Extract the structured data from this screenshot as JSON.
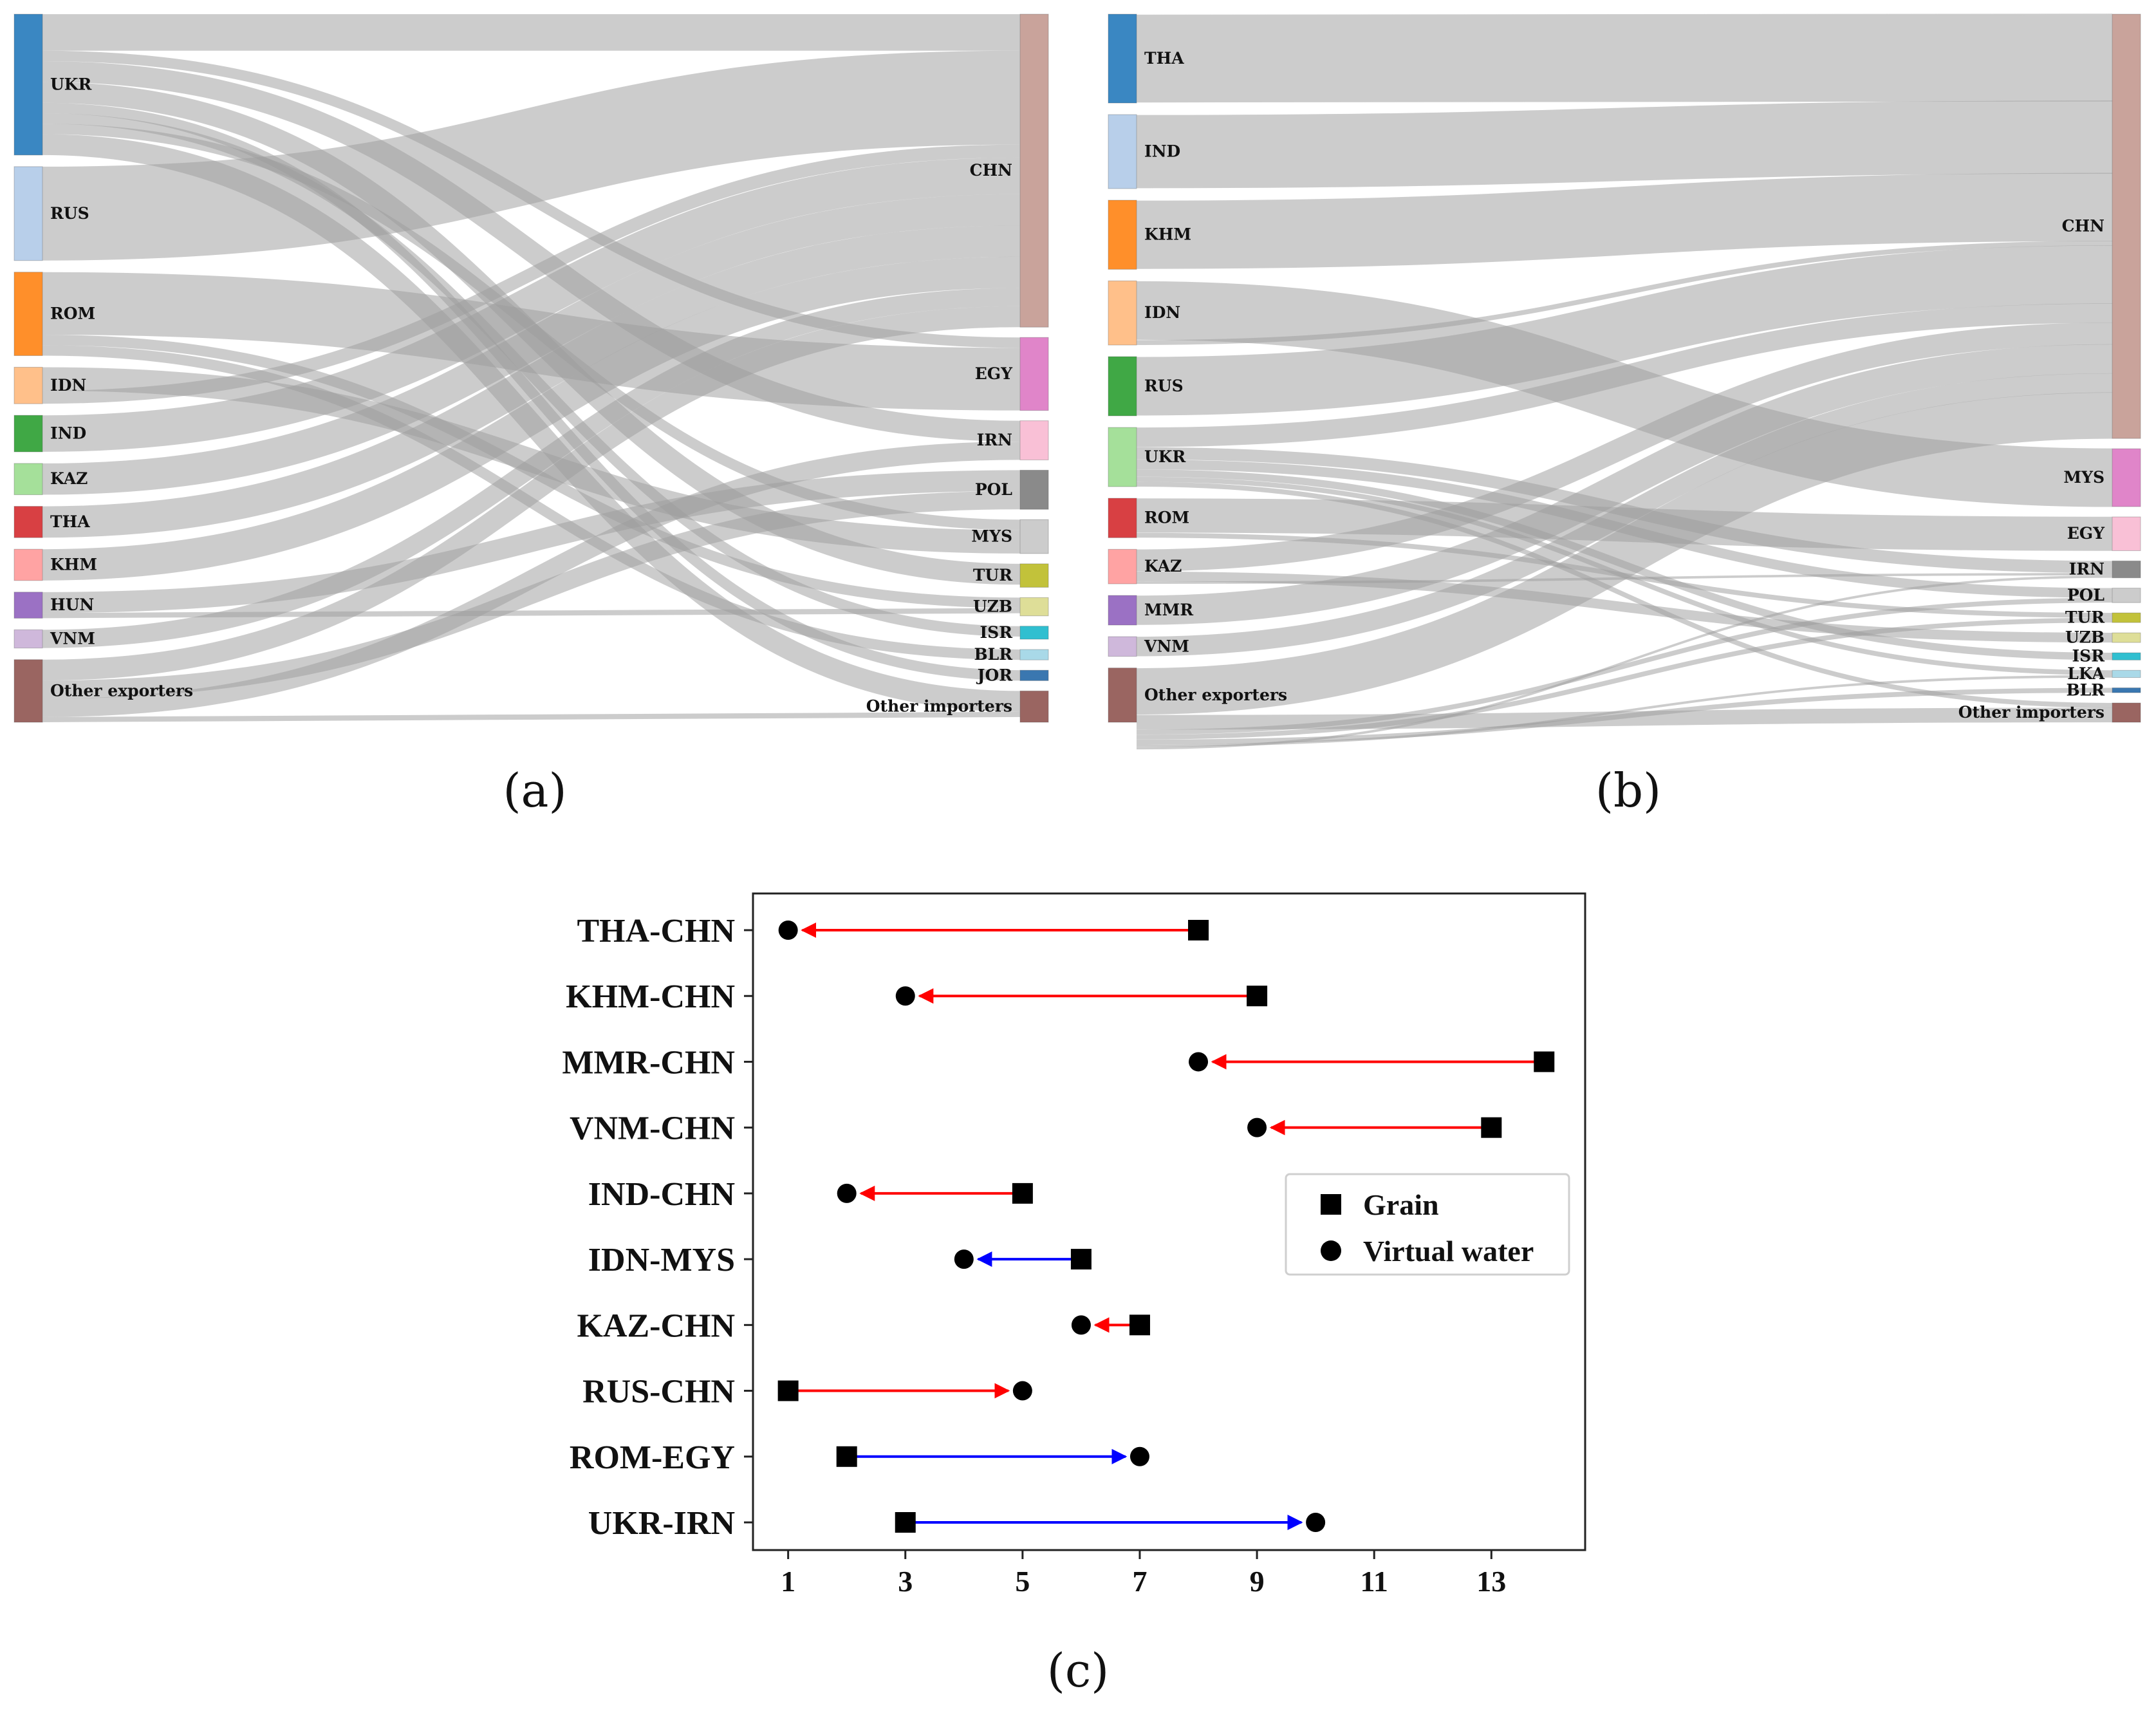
{
  "chart_data": [
    {
      "type": "sankey",
      "caption": "(a)",
      "exporters": [
        "UKR",
        "RUS",
        "ROM",
        "IDN",
        "IND",
        "KAZ",
        "THA",
        "KHM",
        "HUN",
        "VNM",
        "Other exporters"
      ],
      "importers": [
        "CHN",
        "EGY",
        "IRN",
        "POL",
        "MYS",
        "TUR",
        "UZB",
        "ISR",
        "BLR",
        "JOR",
        "Other importers"
      ],
      "exporter_colors": [
        "#3a87c2",
        "#b8cfea",
        "#ff8f2a",
        "#ffc08a",
        "#40a845",
        "#a5e09a",
        "#d84043",
        "#ffa3a3",
        "#9b71c4",
        "#cfb8db",
        "#9a6561"
      ],
      "importer_colors": [
        "#c9a39b",
        "#e085c9",
        "#f9c0d6",
        "#8a8a8a",
        "#cccccc",
        "#c2c23a",
        "#dede98",
        "#30bfd0",
        "#a9d9e8",
        "#3a77b0",
        "#9a6561"
      ],
      "exporter_values": [
        27,
        18,
        16,
        7,
        7,
        6,
        6,
        6,
        5,
        3.5,
        12
      ],
      "importer_values": [
        60,
        14,
        7.5,
        7.5,
        6.5,
        4.5,
        3.5,
        2.5,
        2,
        2,
        6
      ],
      "flows": [
        [
          "UKR",
          "CHN",
          7
        ],
        [
          "UKR",
          "EGY",
          2
        ],
        [
          "UKR",
          "IRN",
          4
        ],
        [
          "UKR",
          "TUR",
          4
        ],
        [
          "UKR",
          "JOR",
          2
        ],
        [
          "UKR",
          "ISR",
          2
        ],
        [
          "UKR",
          "MYS",
          2
        ],
        [
          "UKR",
          "Other importers",
          4
        ],
        [
          "RUS",
          "CHN",
          18
        ],
        [
          "ROM",
          "EGY",
          12
        ],
        [
          "ROM",
          "UZB",
          2
        ],
        [
          "ROM",
          "BLR",
          2
        ],
        [
          "IDN",
          "MYS",
          4.5
        ],
        [
          "IDN",
          "CHN",
          2.5
        ],
        [
          "IND",
          "CHN",
          7
        ],
        [
          "KAZ",
          "CHN",
          6
        ],
        [
          "THA",
          "CHN",
          6
        ],
        [
          "KHM",
          "CHN",
          6
        ],
        [
          "HUN",
          "POL",
          4
        ],
        [
          "HUN",
          "UZB",
          1
        ],
        [
          "VNM",
          "CHN",
          3.5
        ],
        [
          "Other exporters",
          "CHN",
          4
        ],
        [
          "Other exporters",
          "POL",
          3.5
        ],
        [
          "Other exporters",
          "IRN",
          3.5
        ],
        [
          "Other exporters",
          "Other importers",
          1
        ]
      ]
    },
    {
      "type": "sankey",
      "caption": "(b)",
      "exporters": [
        "THA",
        "IND",
        "KHM",
        "IDN",
        "RUS",
        "UKR",
        "ROM",
        "KAZ",
        "MMR",
        "VNM",
        "Other exporters"
      ],
      "importers": [
        "CHN",
        "MYS",
        "EGY",
        "IRN",
        "POL",
        "TUR",
        "UZB",
        "ISR",
        "LKA",
        "BLR",
        "Other importers"
      ],
      "exporter_colors": [
        "#3a87c2",
        "#b8cfea",
        "#ff8f2a",
        "#ffc08a",
        "#40a845",
        "#a5e09a",
        "#d84043",
        "#ffa3a3",
        "#9b71c4",
        "#cfb8db",
        "#9a6561"
      ],
      "importer_colors": [
        "#c9a39b",
        "#e085c9",
        "#f9c0d6",
        "#8a8a8a",
        "#cccccc",
        "#c2c23a",
        "#dede98",
        "#30bfd0",
        "#a9d9e8",
        "#3a77b0",
        "#9a6561"
      ],
      "exporter_values": [
        18,
        15,
        14,
        13,
        12,
        12,
        8,
        7,
        6,
        4,
        11
      ],
      "importer_values": [
        88,
        12,
        7,
        3.5,
        3,
        2,
        2,
        1.5,
        1.5,
        1,
        4
      ],
      "flows": [
        [
          "THA",
          "CHN",
          18
        ],
        [
          "IND",
          "CHN",
          15
        ],
        [
          "KHM",
          "CHN",
          14
        ],
        [
          "IDN",
          "MYS",
          12
        ],
        [
          "IDN",
          "CHN",
          1
        ],
        [
          "RUS",
          "CHN",
          12
        ],
        [
          "UKR",
          "CHN",
          4
        ],
        [
          "UKR",
          "IRN",
          2.5
        ],
        [
          "UKR",
          "POL",
          2
        ],
        [
          "UKR",
          "ISR",
          1.5
        ],
        [
          "UKR",
          "LKA",
          1
        ],
        [
          "UKR",
          "Other importers",
          1
        ],
        [
          "ROM",
          "EGY",
          7
        ],
        [
          "ROM",
          "TUR",
          1
        ],
        [
          "KAZ",
          "CHN",
          4.5
        ],
        [
          "KAZ",
          "UZB",
          2
        ],
        [
          "KAZ",
          "IRN",
          0.5
        ],
        [
          "MMR",
          "CHN",
          6
        ],
        [
          "VNM",
          "CHN",
          4
        ],
        [
          "Other exporters",
          "CHN",
          9.5
        ],
        [
          "Other exporters",
          "Other importers",
          3
        ],
        [
          "Other exporters",
          "POL",
          1
        ],
        [
          "Other exporters",
          "TUR",
          1
        ],
        [
          "Other exporters",
          "BLR",
          1
        ],
        [
          "Other exporters",
          "LKA",
          0.5
        ],
        [
          "Other exporters",
          "IRN",
          0.5
        ]
      ]
    },
    {
      "type": "dumbbell",
      "caption": "(c)",
      "categories": [
        "THA-CHN",
        "KHM-CHN",
        "MMR-CHN",
        "VNM-CHN",
        "IND-CHN",
        "IDN-MYS",
        "KAZ-CHN",
        "RUS-CHN",
        "ROM-EGY",
        "UKR-IRN"
      ],
      "series": [
        {
          "name": "Grain",
          "marker": "square",
          "values": [
            8,
            9,
            13.9,
            13,
            5,
            6,
            7,
            1,
            2,
            3
          ]
        },
        {
          "name": "Virtual water",
          "marker": "circle",
          "values": [
            1,
            3,
            8,
            9,
            2,
            4,
            6,
            5,
            7,
            10
          ]
        }
      ],
      "arrow_colors": [
        "red",
        "red",
        "red",
        "red",
        "red",
        "blue",
        "red",
        "red",
        "blue",
        "blue"
      ],
      "xticks": [
        1,
        3,
        5,
        7,
        9,
        11,
        13
      ],
      "xlim": [
        0.4,
        14.6
      ],
      "legend_position": "center-right"
    }
  ]
}
